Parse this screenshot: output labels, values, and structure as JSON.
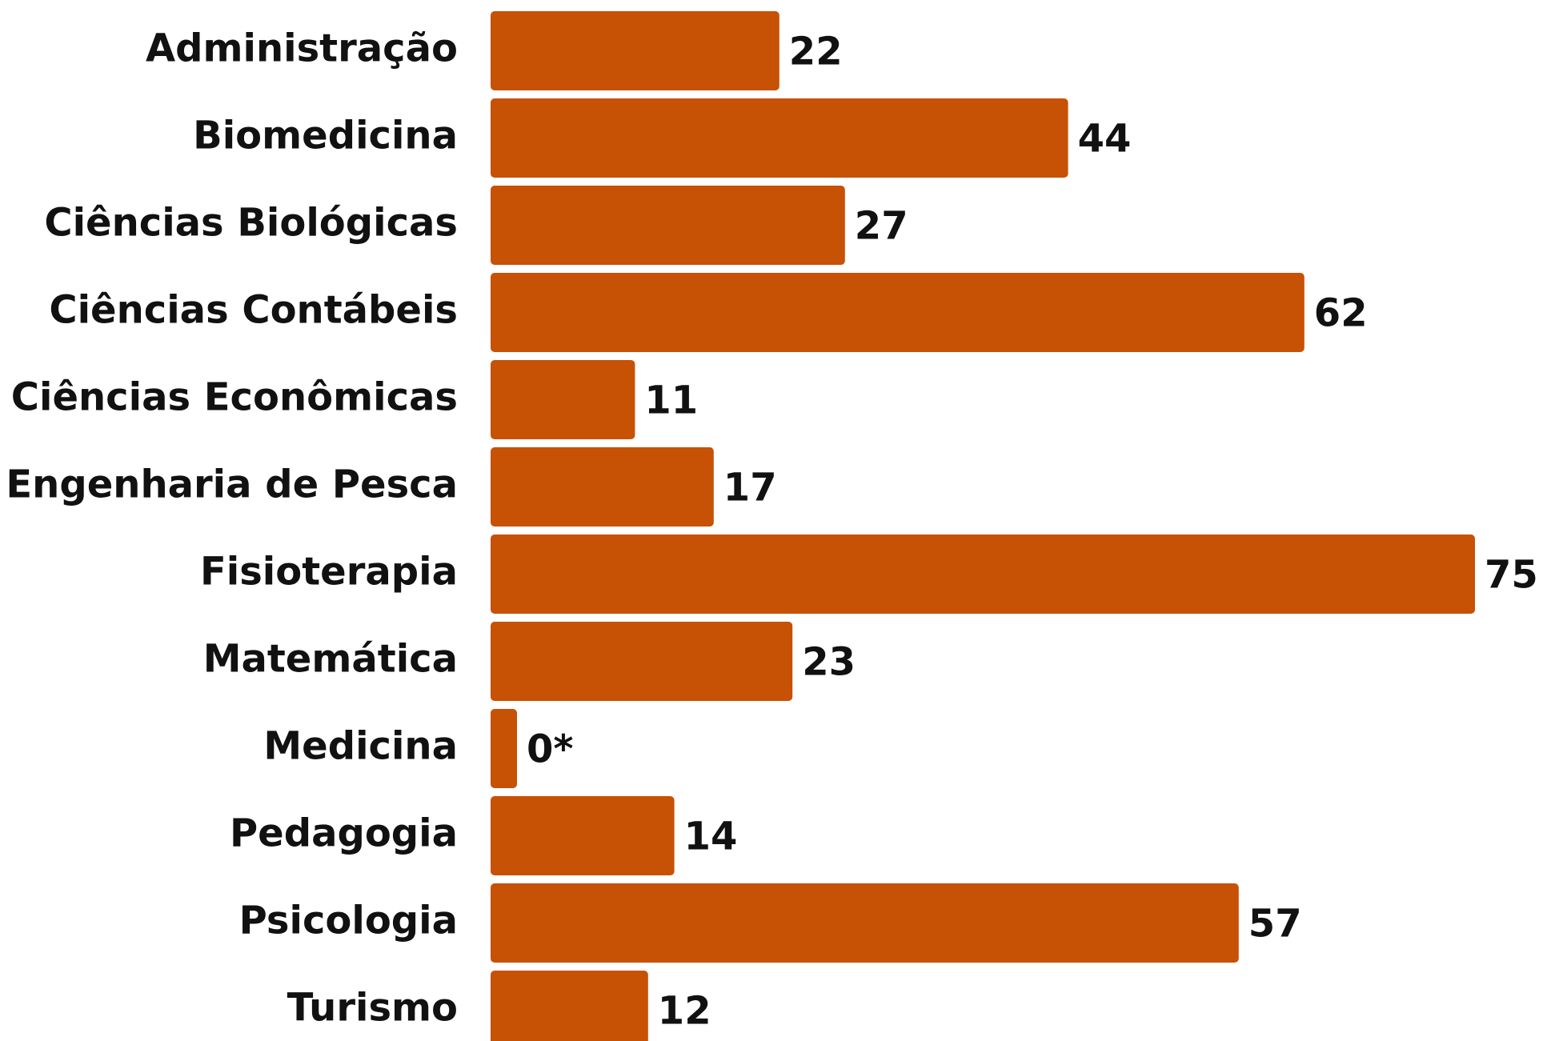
{
  "chart_data": {
    "type": "bar",
    "orientation": "horizontal",
    "categories": [
      "Administração",
      "Biomedicina",
      "Ciências Biológicas",
      "Ciências Contábeis",
      "Ciências Econômicas",
      "Engenharia de Pesca",
      "Fisioterapia",
      "Matemática",
      "Medicina",
      "Pedagogia",
      "Psicologia",
      "Turismo"
    ],
    "values": [
      22,
      44,
      27,
      62,
      11,
      17,
      75,
      23,
      0,
      14,
      57,
      12
    ],
    "value_labels": [
      "22",
      "44",
      "27",
      "62",
      "11",
      "17",
      "75",
      "23",
      "0*",
      "14",
      "57",
      "12"
    ],
    "color": "#c75105"
  }
}
